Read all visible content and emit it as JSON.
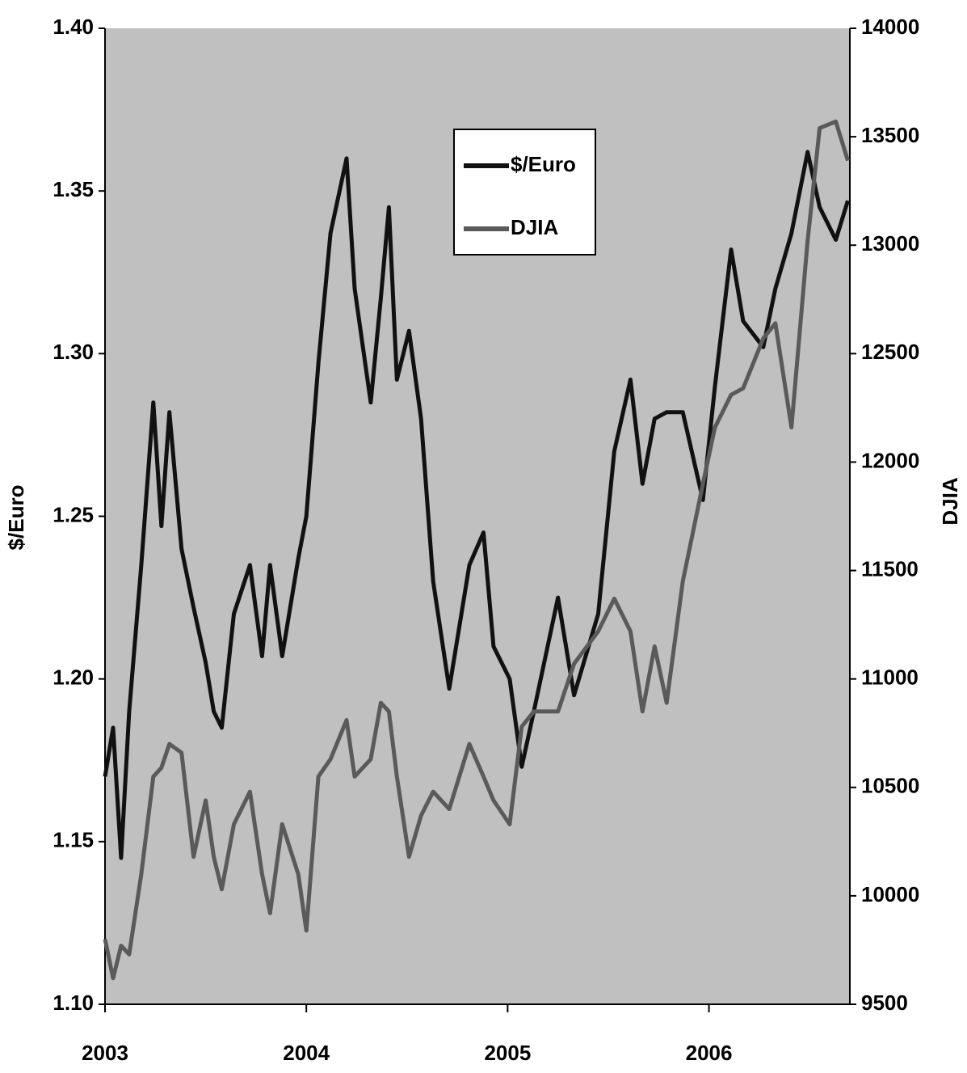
{
  "chart_data": {
    "type": "line",
    "x": [
      2003.0,
      2003.04,
      2003.08,
      2003.12,
      2003.18,
      2003.24,
      2003.28,
      2003.32,
      2003.38,
      2003.44,
      2003.5,
      2003.54,
      2003.58,
      2003.64,
      2003.72,
      2003.78,
      2003.82,
      2003.88,
      2003.96,
      2004.0,
      2004.06,
      2004.12,
      2004.2,
      2004.24,
      2004.32,
      2004.37,
      2004.41,
      2004.45,
      2004.51,
      2004.57,
      2004.63,
      2004.71,
      2004.81,
      2004.88,
      2004.93,
      2005.01,
      2005.07,
      2005.13,
      2005.25,
      2005.33,
      2005.45,
      2005.53,
      2005.61,
      2005.67,
      2005.73,
      2005.79,
      2005.87,
      2005.97,
      2006.03,
      2006.11,
      2006.17,
      2006.27,
      2006.33,
      2006.41,
      2006.49,
      2006.55,
      2006.63,
      2006.69
    ],
    "series": [
      {
        "name": "$/Euro",
        "color": "#111111",
        "axis": "y",
        "values": [
          1.17,
          1.185,
          1.145,
          1.19,
          1.235,
          1.285,
          1.247,
          1.282,
          1.24,
          1.222,
          1.205,
          1.19,
          1.185,
          1.22,
          1.235,
          1.207,
          1.235,
          1.207,
          1.237,
          1.25,
          1.297,
          1.337,
          1.36,
          1.32,
          1.285,
          1.317,
          1.345,
          1.292,
          1.307,
          1.28,
          1.23,
          1.197,
          1.235,
          1.245,
          1.21,
          1.2,
          1.173,
          1.19,
          1.225,
          1.195,
          1.22,
          1.27,
          1.292,
          1.26,
          1.28,
          1.282,
          1.282,
          1.255,
          1.29,
          1.332,
          1.31,
          1.302,
          1.32,
          1.337,
          1.362,
          1.345,
          1.335,
          1.347
        ]
      },
      {
        "name": "DJIA",
        "color": "#5a5a5a",
        "axis": "y2",
        "values": [
          9800,
          9620,
          9770,
          9730,
          10100,
          10550,
          10590,
          10700,
          10660,
          10180,
          10440,
          10180,
          10030,
          10330,
          10480,
          10100,
          9920,
          10330,
          10100,
          9840,
          10550,
          10630,
          10810,
          10550,
          10630,
          10890,
          10850,
          10550,
          10180,
          10370,
          10480,
          10400,
          10700,
          10550,
          10440,
          10330,
          10780,
          10850,
          10850,
          11070,
          11220,
          11370,
          11220,
          10850,
          11150,
          10890,
          11450,
          11900,
          12160,
          12310,
          12340,
          12570,
          12640,
          12160,
          13020,
          13540,
          13570,
          13390
        ]
      }
    ],
    "xlim": [
      2003,
      2006.7
    ],
    "xticks": [
      2003,
      2004,
      2005,
      2006
    ],
    "ylim": [
      1.1,
      1.4
    ],
    "yticks": [
      {
        "value": 1.1,
        "label": "1.10"
      },
      1.15,
      {
        "value": 1.2,
        "label": "1.20"
      },
      1.25,
      {
        "value": 1.3,
        "label": "1.30"
      },
      1.35,
      {
        "value": 1.4,
        "label": "1.40"
      }
    ],
    "y2lim": [
      9500,
      14000
    ],
    "y2ticks": [
      9500,
      10000,
      10500,
      11000,
      11500,
      12000,
      12500,
      13000,
      13500,
      14000
    ],
    "ylabel": "$/Euro",
    "y2label": "DJIA",
    "legend": "top-center",
    "background": "#c0c0c0"
  }
}
